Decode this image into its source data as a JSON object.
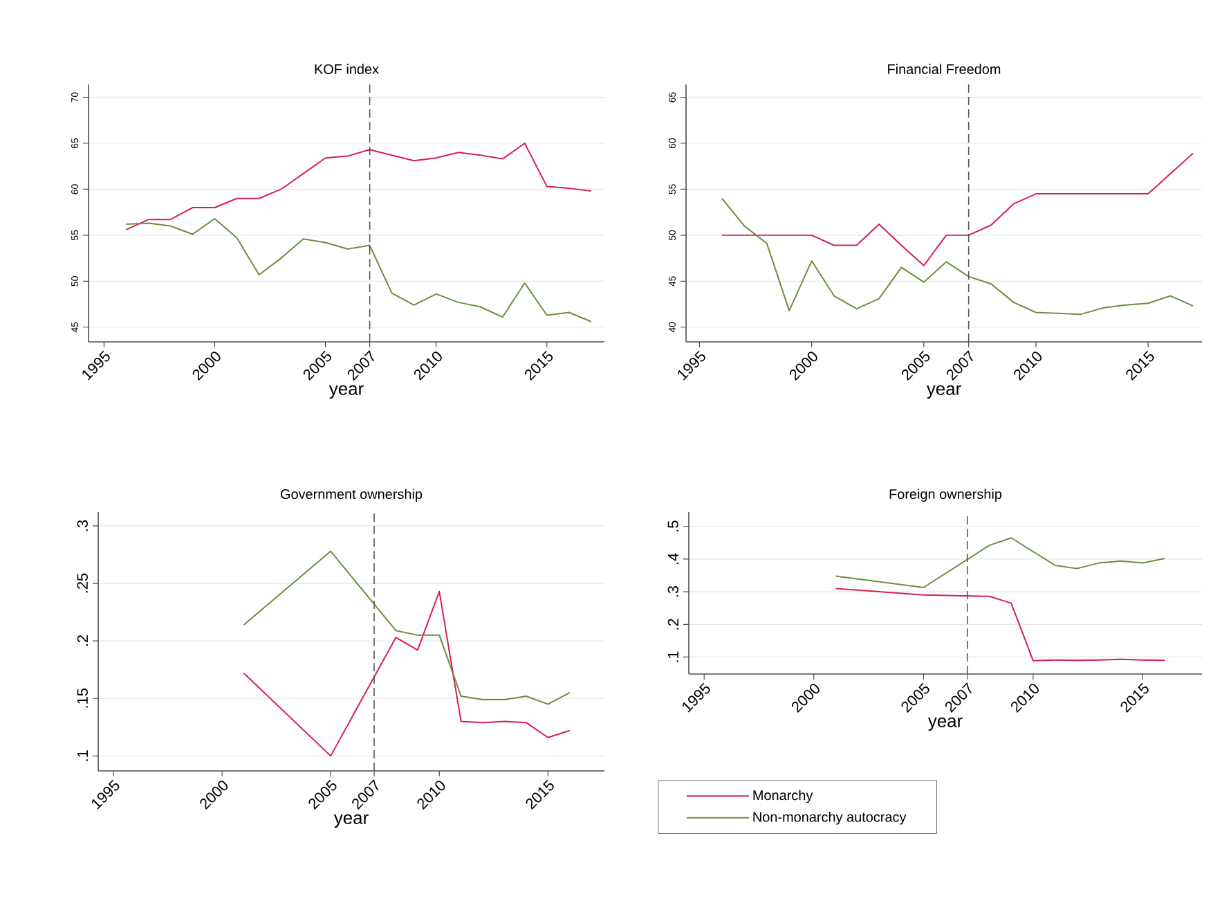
{
  "chart_data": [
    {
      "type": "line",
      "title": "KOF index",
      "xlabel": "year",
      "xlim": [
        1994.3,
        2017.6
      ],
      "ylim": [
        43.4,
        71.4
      ],
      "xticks": [
        1995,
        2000,
        2005,
        2007,
        2010,
        2015
      ],
      "yticks": [
        45,
        50,
        55,
        60,
        65,
        70
      ],
      "grid": "y",
      "ref_lines": [
        {
          "axis": "x",
          "value": 2007,
          "color": "#555555",
          "line_style": "dashed"
        }
      ],
      "series": [
        {
          "color": "#d81e4f",
          "x": [
            1996,
            1997,
            1998,
            1999,
            2000,
            2001,
            2002,
            2003,
            2004,
            2005,
            2006,
            2007,
            2008,
            2009,
            2010,
            2011,
            2012,
            2013,
            2014,
            2015,
            2016,
            2017
          ],
          "values": [
            55.6,
            56.7,
            56.7,
            58.0,
            58.0,
            59.0,
            59.0,
            60.0,
            61.7,
            63.4,
            63.6,
            64.3,
            63.7,
            63.1,
            63.4,
            64.0,
            63.7,
            63.3,
            65.0,
            60.3,
            60.1,
            59.8
          ]
        },
        {
          "color": "#6a8d3f",
          "x": [
            1996,
            1997,
            1998,
            1999,
            2000,
            2001,
            2002,
            2003,
            2004,
            2005,
            2006,
            2007,
            2008,
            2009,
            2010,
            2011,
            2012,
            2013,
            2014,
            2015,
            2016,
            2017
          ],
          "values": [
            56.2,
            56.3,
            56.0,
            55.1,
            56.8,
            54.7,
            50.7,
            52.5,
            54.6,
            54.2,
            53.5,
            53.9,
            48.7,
            47.4,
            48.6,
            47.7,
            47.2,
            46.1,
            49.8,
            46.3,
            46.6,
            45.6
          ]
        }
      ]
    },
    {
      "type": "line",
      "title": "Financial Freedom",
      "xlabel": "year",
      "xlim": [
        1994.4,
        2017.4
      ],
      "ylim": [
        38.4,
        66.4
      ],
      "xticks": [
        1995,
        2000,
        2005,
        2007,
        2010,
        2015
      ],
      "yticks": [
        40,
        45,
        50,
        55,
        60,
        65
      ],
      "grid": "y",
      "ref_lines": [
        {
          "axis": "x",
          "value": 2007,
          "color": "#555555",
          "line_style": "dashed"
        }
      ],
      "series": [
        {
          "color": "#d81e4f",
          "x": [
            1996,
            1997,
            1998,
            1999,
            2000,
            2001,
            2002,
            2003,
            2004,
            2005,
            2006,
            2007,
            2008,
            2009,
            2010,
            2011,
            2012,
            2013,
            2014,
            2015,
            2016,
            2017
          ],
          "values": [
            50.0,
            50.0,
            50.0,
            50.0,
            50.0,
            48.9,
            48.9,
            51.2,
            48.9,
            46.7,
            50.0,
            50.0,
            51.1,
            53.4,
            54.5,
            54.5,
            54.5,
            54.5,
            54.5,
            54.5,
            56.7,
            58.9
          ]
        },
        {
          "color": "#6a8d3f",
          "x": [
            1996,
            1997,
            1998,
            1999,
            2000,
            2001,
            2002,
            2003,
            2004,
            2005,
            2006,
            2007,
            2008,
            2009,
            2010,
            2011,
            2012,
            2013,
            2014,
            2015,
            2016,
            2017
          ],
          "values": [
            54.0,
            51.0,
            49.1,
            41.8,
            47.2,
            43.4,
            42.0,
            43.1,
            46.5,
            44.9,
            47.1,
            45.5,
            44.7,
            42.7,
            41.6,
            41.5,
            41.4,
            42.1,
            42.4,
            42.6,
            43.4,
            42.3
          ]
        }
      ]
    },
    {
      "type": "line",
      "title": "Government ownership",
      "xlabel": "year",
      "xlim": [
        1994.3,
        2017.6
      ],
      "ylim": [
        0.087,
        0.312
      ],
      "xticks": [
        1995,
        2000,
        2005,
        2007,
        2010,
        2015
      ],
      "yticks": [
        {
          "value": 0.1,
          "label": ".1"
        },
        {
          "value": 0.15,
          "label": ".15"
        },
        {
          "value": 0.2,
          "label": ".2"
        },
        {
          "value": 0.25,
          "label": ".25"
        },
        {
          "value": 0.3,
          "label": ".3"
        }
      ],
      "grid": "y",
      "ref_lines": [
        {
          "axis": "x",
          "value": 2007,
          "color": "#555555",
          "line_style": "dashed"
        }
      ],
      "series": [
        {
          "color": "#d81e4f",
          "x": [
            2001,
            2005,
            2008,
            2009,
            2010,
            2011,
            2012,
            2013,
            2014,
            2015,
            2016
          ],
          "values": [
            0.172,
            0.1,
            0.203,
            0.192,
            0.243,
            0.13,
            0.129,
            0.13,
            0.129,
            0.116,
            0.122
          ]
        },
        {
          "color": "#6a8d3f",
          "x": [
            2001,
            2005,
            2008,
            2009,
            2010,
            2011,
            2012,
            2013,
            2014,
            2015,
            2016
          ],
          "values": [
            0.214,
            0.278,
            0.209,
            0.205,
            0.205,
            0.152,
            0.149,
            0.149,
            0.152,
            0.145,
            0.155
          ]
        }
      ]
    },
    {
      "type": "line",
      "title": "Foreign ownership",
      "xlabel": "year",
      "xlim": [
        1994.3,
        2017.7
      ],
      "ylim": [
        0.048,
        0.544
      ],
      "xticks": [
        1995,
        2000,
        2005,
        2007,
        2010,
        2015
      ],
      "yticks": [
        {
          "value": 0.1,
          "label": ".1"
        },
        {
          "value": 0.2,
          "label": ".2"
        },
        {
          "value": 0.3,
          "label": ".3"
        },
        {
          "value": 0.4,
          "label": ".4"
        },
        {
          "value": 0.5,
          "label": ".5"
        }
      ],
      "grid": "y",
      "legend": "bottom",
      "ref_lines": [
        {
          "axis": "x",
          "value": 2007,
          "color": "#555555",
          "line_style": "dashed"
        }
      ],
      "series": [
        {
          "name": "Monarchy",
          "color": "#d81e4f",
          "x": [
            2001,
            2005,
            2008,
            2009,
            2010,
            2011,
            2012,
            2013,
            2014,
            2015,
            2016
          ],
          "values": [
            0.31,
            0.29,
            0.286,
            0.265,
            0.089,
            0.091,
            0.09,
            0.091,
            0.093,
            0.091,
            0.09
          ]
        },
        {
          "name": "Non-monarchy autocracy",
          "color": "#6a8d3f",
          "x": [
            2001,
            2005,
            2008,
            2009,
            2011,
            2012,
            2013,
            2014,
            2015,
            2016
          ],
          "values": [
            0.348,
            0.313,
            0.442,
            0.465,
            0.381,
            0.371,
            0.388,
            0.394,
            0.388,
            0.402
          ]
        }
      ]
    }
  ]
}
